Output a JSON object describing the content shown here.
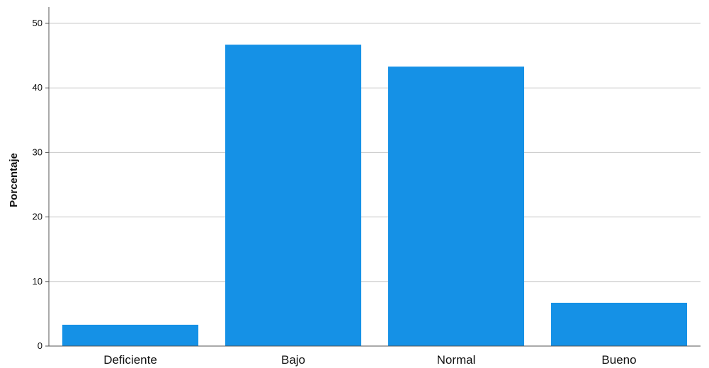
{
  "chart_data": {
    "type": "bar",
    "categories": [
      "Deficiente",
      "Bajo",
      "Normal",
      "Bueno"
    ],
    "values": [
      3.3,
      46.7,
      43.3,
      6.7
    ],
    "xlabel": "",
    "ylabel": "Porcentaje",
    "ylim": [
      0,
      50
    ],
    "yticks": [
      0,
      10,
      20,
      30,
      40,
      50
    ],
    "grid": true,
    "bar_color": "#1591e6",
    "grid_color": "#c8c8c8",
    "axis_color": "#555555"
  }
}
